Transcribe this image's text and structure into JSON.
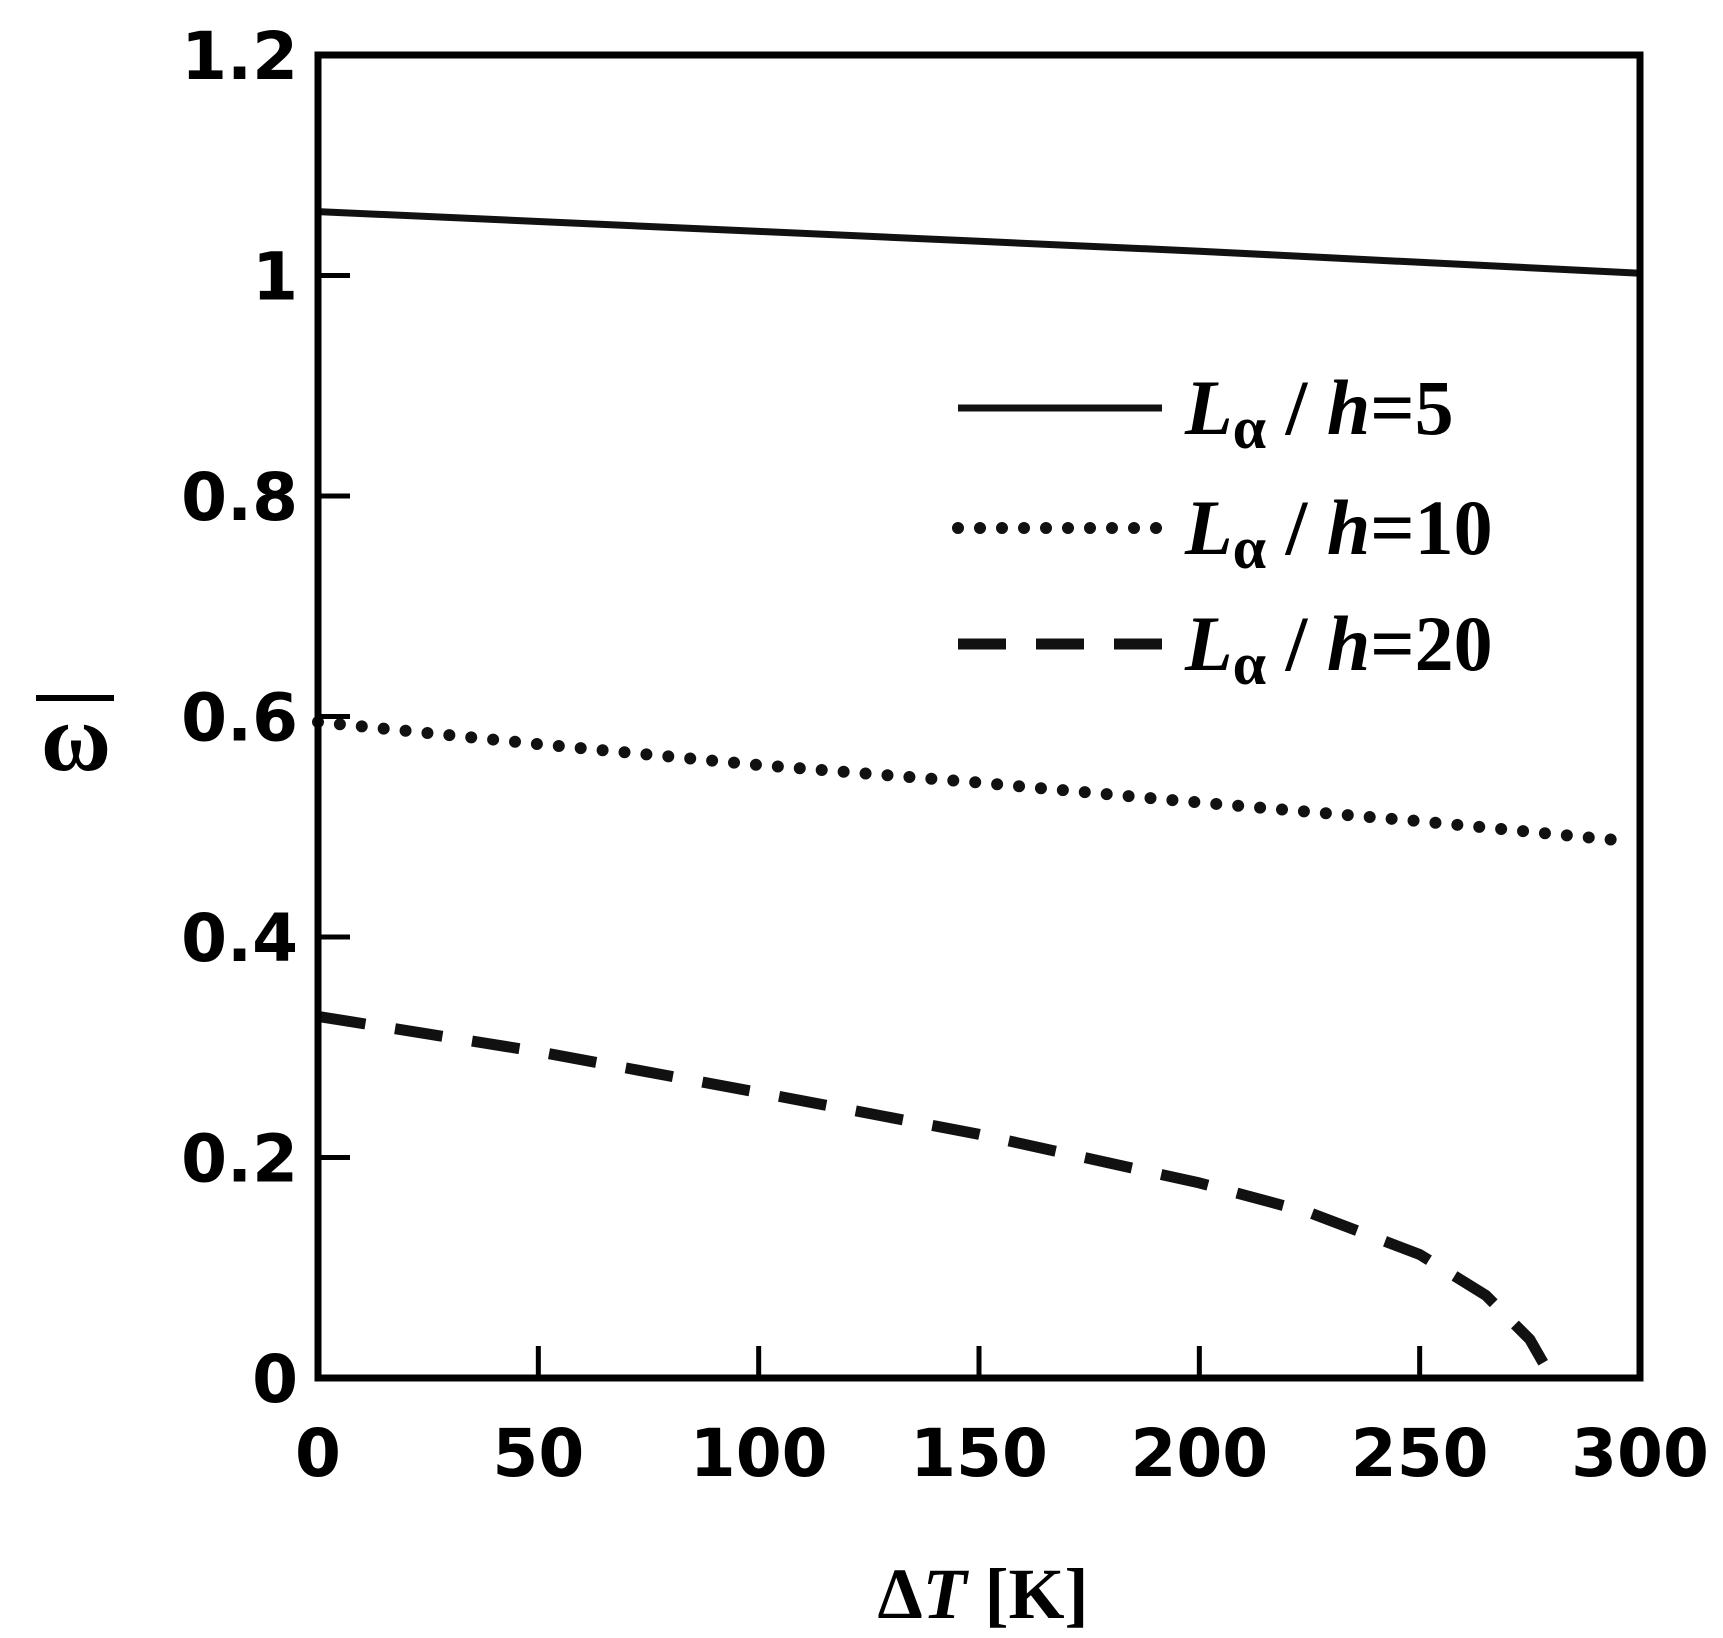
{
  "chart_data": {
    "type": "line",
    "xlabel": {
      "delta": "Δ",
      "var": "T",
      "unit": " [K]"
    },
    "ylabel": "ω",
    "xlim": [
      0,
      300
    ],
    "ylim": [
      0,
      1.2
    ],
    "x_ticks": [
      "0",
      "50",
      "100",
      "150",
      "200",
      "250",
      "300"
    ],
    "y_ticks": [
      "0",
      "0.2",
      "0.4",
      "0.6",
      "0.8",
      "1",
      "1.2"
    ],
    "x_tick_values": [
      0,
      50,
      100,
      150,
      200,
      250,
      300
    ],
    "y_tick_values": [
      0,
      0.2,
      0.4,
      0.6,
      0.8,
      1.0,
      1.2
    ],
    "grid": false,
    "legend_position": "top-right",
    "series": [
      {
        "name": "L_α / h=5",
        "legend": {
          "L": "L",
          "sub": "α",
          "mid": " / ",
          "h": "h",
          "val": "=5"
        },
        "style": "solid",
        "x": [
          0,
          50,
          100,
          150,
          200,
          250,
          300
        ],
        "y": [
          1.058,
          1.049,
          1.04,
          1.031,
          1.022,
          1.012,
          1.002
        ]
      },
      {
        "name": "L_α / h=10",
        "legend": {
          "L": "L",
          "sub": "α",
          "mid": " / ",
          "h": "h",
          "val": "=10"
        },
        "style": "dotted",
        "x": [
          0,
          50,
          100,
          150,
          200,
          250,
          297
        ],
        "y": [
          0.595,
          0.575,
          0.556,
          0.54,
          0.522,
          0.505,
          0.487
        ]
      },
      {
        "name": "L_α / h=20",
        "legend": {
          "L": "L",
          "sub": "α",
          "mid": " / ",
          "h": "h",
          "val": "=20"
        },
        "style": "dashed",
        "x": [
          0,
          50,
          100,
          150,
          200,
          225,
          250,
          265,
          275,
          280
        ],
        "y": [
          0.328,
          0.296,
          0.259,
          0.221,
          0.177,
          0.15,
          0.112,
          0.075,
          0.035,
          0.0
        ]
      }
    ]
  },
  "colors": {
    "axis": "#000000",
    "line": "#111111",
    "background": "#ffffff"
  }
}
